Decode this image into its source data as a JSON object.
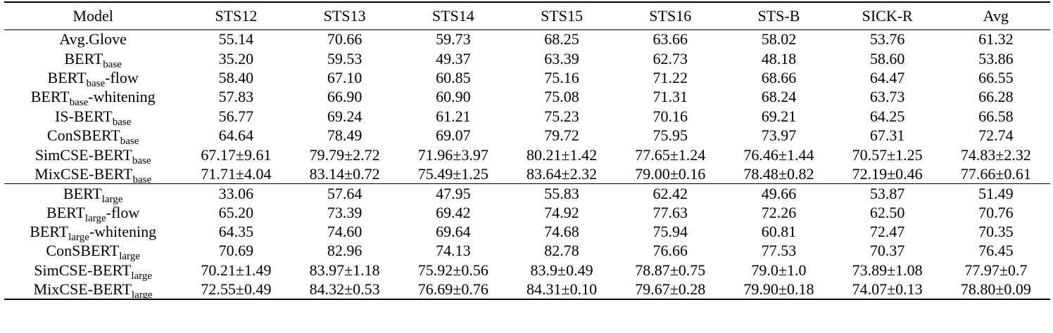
{
  "header": [
    "Model",
    "STS12",
    "STS13",
    "STS14",
    "STS15",
    "STS16",
    "STS-B",
    "SICK-R",
    "Avg"
  ],
  "sections": [
    {
      "rows": [
        {
          "model": {
            "pre": "Avg.Glove",
            "sub": "",
            "post": ""
          },
          "cells": [
            "55.14",
            "70.66",
            "59.73",
            "68.25",
            "63.66",
            "58.02",
            "53.76",
            "61.32"
          ],
          "bold": false
        },
        {
          "model": {
            "pre": "BERT",
            "sub": "base",
            "post": ""
          },
          "cells": [
            "35.20",
            "59.53",
            "49.37",
            "63.39",
            "62.73",
            "48.18",
            "58.60",
            "53.86"
          ],
          "bold": false
        },
        {
          "model": {
            "pre": "BERT",
            "sub": "base",
            "post": "-flow"
          },
          "cells": [
            "58.40",
            "67.10",
            "60.85",
            "75.16",
            "71.22",
            "68.66",
            "64.47",
            "66.55"
          ],
          "bold": false
        },
        {
          "model": {
            "pre": "BERT",
            "sub": "base",
            "post": "-whitening"
          },
          "cells": [
            "57.83",
            "66.90",
            "60.90",
            "75.08",
            "71.31",
            "68.24",
            "63.73",
            "66.28"
          ],
          "bold": false
        },
        {
          "model": {
            "pre": "IS-BERT",
            "sub": "base",
            "post": ""
          },
          "cells": [
            "56.77",
            "69.24",
            "61.21",
            "75.23",
            "70.16",
            "69.21",
            "64.25",
            "66.58"
          ],
          "bold": false
        },
        {
          "model": {
            "pre": "ConSBERT",
            "sub": "base",
            "post": ""
          },
          "cells": [
            "64.64",
            "78.49",
            "69.07",
            "79.72",
            "75.95",
            "73.97",
            "67.31",
            "72.74"
          ],
          "bold": false
        },
        {
          "model": {
            "pre": "SimCSE-BERT",
            "sub": "base",
            "post": ""
          },
          "cells": [
            "67.17±9.61",
            "79.79±2.72",
            "71.96±3.97",
            "80.21±1.42",
            "77.65±1.24",
            "76.46±1.44",
            "70.57±1.25",
            "74.83±2.32"
          ],
          "bold": false
        },
        {
          "model": {
            "pre": "MixCSE-BERT",
            "sub": "base",
            "post": ""
          },
          "cells": [
            "71.71±4.04",
            "83.14±0.72",
            "75.49±1.25",
            "83.64±2.32",
            "79.00±0.16",
            "78.48±0.82",
            "72.19±0.46",
            "77.66±0.61"
          ],
          "bold": true
        }
      ]
    },
    {
      "rows": [
        {
          "model": {
            "pre": "BERT",
            "sub": "large",
            "post": ""
          },
          "cells": [
            "33.06",
            "57.64",
            "47.95",
            "55.83",
            "62.42",
            "49.66",
            "53.87",
            "51.49"
          ],
          "bold": false
        },
        {
          "model": {
            "pre": "BERT",
            "sub": "large",
            "post": "-flow"
          },
          "cells": [
            "65.20",
            "73.39",
            "69.42",
            "74.92",
            "77.63",
            "72.26",
            "62.50",
            "70.76"
          ],
          "bold": false
        },
        {
          "model": {
            "pre": "BERT",
            "sub": "large",
            "post": "-whitening"
          },
          "cells": [
            "64.35",
            "74.60",
            "69.64",
            "74.68",
            "75.94",
            "60.81",
            "72.47",
            "70.35"
          ],
          "bold": false
        },
        {
          "model": {
            "pre": "ConSBERT",
            "sub": "large",
            "post": ""
          },
          "cells": [
            "70.69",
            "82.96",
            "74.13",
            "82.78",
            "76.66",
            "77.53",
            "70.37",
            "76.45"
          ],
          "bold": false
        },
        {
          "model": {
            "pre": "SimCSE-BERT",
            "sub": "large",
            "post": ""
          },
          "cells": [
            "70.21±1.49",
            "83.97±1.18",
            "75.92±0.56",
            "83.9±0.49",
            "78.87±0.75",
            "79.0±1.0",
            "73.89±1.08",
            "77.97±0.7"
          ],
          "bold": false
        },
        {
          "model": {
            "pre": "MixCSE-BERT",
            "sub": "large",
            "post": ""
          },
          "cells": [
            "72.55±0.49",
            "84.32±0.53",
            "76.69±0.76",
            "84.31±0.10",
            "79.67±0.28",
            "79.90±0.18",
            "74.07±0.13",
            "78.80±0.09"
          ],
          "bold": true
        }
      ]
    }
  ]
}
